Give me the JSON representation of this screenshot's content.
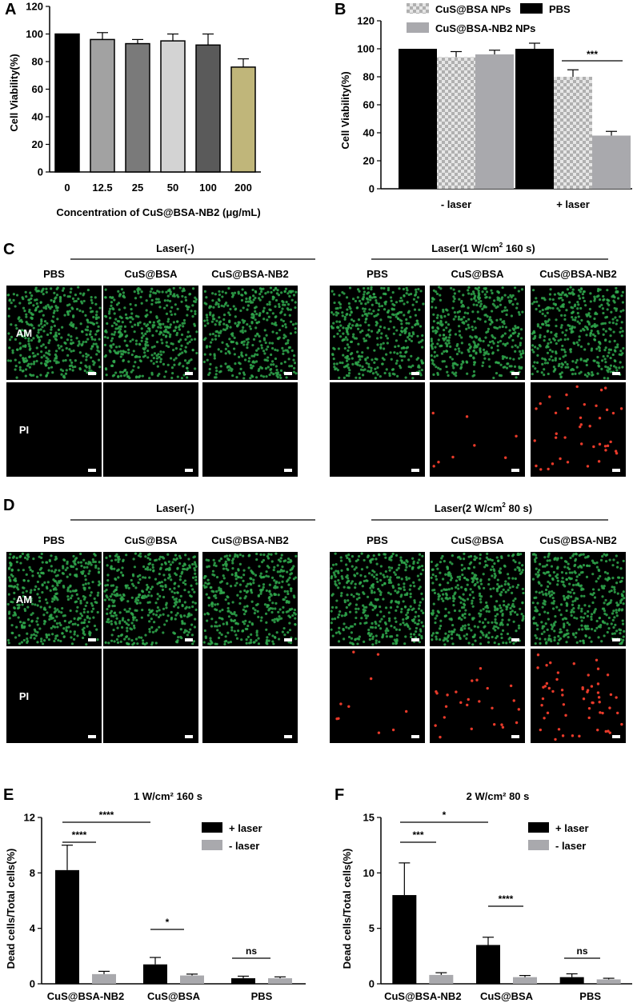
{
  "colors": {
    "black": "#000000",
    "light_gray": "#a9a9ad",
    "mid_gray": "#8a8a8a",
    "bar_12_5": "#a2a2a2",
    "bar_25": "#7a7a7a",
    "bar_50": "#d3d3d3",
    "bar_100": "#5a5a5a",
    "bar_200": "#c0b67a",
    "am_green": "#2fa84c",
    "pi_red": "#e83a2a"
  },
  "panel_labels": {
    "A": "A",
    "B": "B",
    "C": "C",
    "D": "D",
    "E": "E",
    "F": "F"
  },
  "chart_data": [
    {
      "id": "A",
      "type": "bar",
      "xlabel": "Concentration of CuS@BSA-NB2 (μg/mL)",
      "ylabel": "Cell Viability(%)",
      "ylim": [
        0,
        120
      ],
      "yticks": [
        "0",
        "20",
        "40",
        "60",
        "80",
        "100",
        "120"
      ],
      "categories": [
        "0",
        "12.5",
        "25",
        "50",
        "100",
        "200"
      ],
      "values": [
        100,
        96,
        93,
        95,
        92,
        76
      ],
      "errors": [
        0,
        5,
        3,
        5,
        8,
        6
      ],
      "bar_colors": [
        "#000000",
        "#a2a2a2",
        "#7a7a7a",
        "#d3d3d3",
        "#5a5a5a",
        "#c0b67a"
      ]
    },
    {
      "id": "B",
      "type": "bar",
      "ylabel": "Cell Viability(%)",
      "ylim": [
        0,
        120
      ],
      "yticks": [
        "0",
        "20",
        "40",
        "60",
        "80",
        "100",
        "120"
      ],
      "categories": [
        "- laser",
        "+ laser"
      ],
      "series": [
        {
          "name": "PBS",
          "values": [
            100,
            100
          ],
          "errors": [
            0,
            4
          ]
        },
        {
          "name": "CuS@BSA NPs",
          "values": [
            94,
            80
          ],
          "errors": [
            4,
            5
          ]
        },
        {
          "name": "CuS@BSA-NB2 NPs",
          "values": [
            96,
            38
          ],
          "errors": [
            3,
            3
          ]
        }
      ],
      "legend": "top",
      "annotations": [
        "***"
      ]
    },
    {
      "id": "E",
      "type": "bar",
      "title": "1 W/cm² 160 s",
      "ylabel": "Dead cells/Total cells(%)",
      "ylim": [
        0,
        12
      ],
      "yticks": [
        "0",
        "4",
        "8",
        "12"
      ],
      "categories": [
        "CuS@BSA-NB2",
        "CuS@BSA",
        "PBS"
      ],
      "series": [
        {
          "name": "+ laser",
          "values": [
            8.2,
            1.4,
            0.4
          ],
          "errors": [
            1.8,
            0.5,
            0.15
          ]
        },
        {
          "name": "- laser",
          "values": [
            0.7,
            0.6,
            0.4
          ],
          "errors": [
            0.2,
            0.1,
            0.1
          ]
        }
      ],
      "legend": "top-right",
      "annotations": [
        "****",
        "****",
        "*",
        "ns"
      ]
    },
    {
      "id": "F",
      "type": "bar",
      "title": "2 W/cm² 80 s",
      "ylabel": "Dead cells/Total cells(%)",
      "ylim": [
        0,
        15
      ],
      "yticks": [
        "0",
        "5",
        "10",
        "15"
      ],
      "categories": [
        "CuS@BSA-NB2",
        "CuS@BSA",
        "PBS"
      ],
      "series": [
        {
          "name": "+ laser",
          "values": [
            8.0,
            3.5,
            0.6
          ],
          "errors": [
            2.9,
            0.7,
            0.3
          ]
        },
        {
          "name": "- laser",
          "values": [
            0.8,
            0.6,
            0.4
          ],
          "errors": [
            0.2,
            0.15,
            0.1
          ]
        }
      ],
      "legend": "top-right",
      "annotations": [
        "***",
        "*",
        "****",
        "ns"
      ]
    }
  ],
  "panel_C": {
    "group_neg": "Laser(-)",
    "group_pos_prefix": "Laser(1 W/cm",
    "group_pos_sup": "2",
    "group_pos_suffix": " 160 s)",
    "columns": [
      "PBS",
      "CuS@BSA",
      "CuS@BSA-NB2",
      "PBS",
      "CuS@BSA",
      "CuS@BSA-NB2"
    ],
    "rows": [
      "AM",
      "PI"
    ],
    "pi_dots": [
      0,
      0,
      0,
      0,
      8,
      40
    ]
  },
  "panel_D": {
    "group_neg": "Laser(-)",
    "group_pos_prefix": "Laser(2 W/cm",
    "group_pos_sup": "2",
    "group_pos_suffix": " 80 s)",
    "columns": [
      "PBS",
      "CuS@BSA",
      "CuS@BSA-NB2",
      "PBS",
      "CuS@BSA",
      "CuS@BSA-NB2"
    ],
    "rows": [
      "AM",
      "PI"
    ],
    "pi_dots": [
      0,
      0,
      0,
      10,
      25,
      55
    ]
  }
}
